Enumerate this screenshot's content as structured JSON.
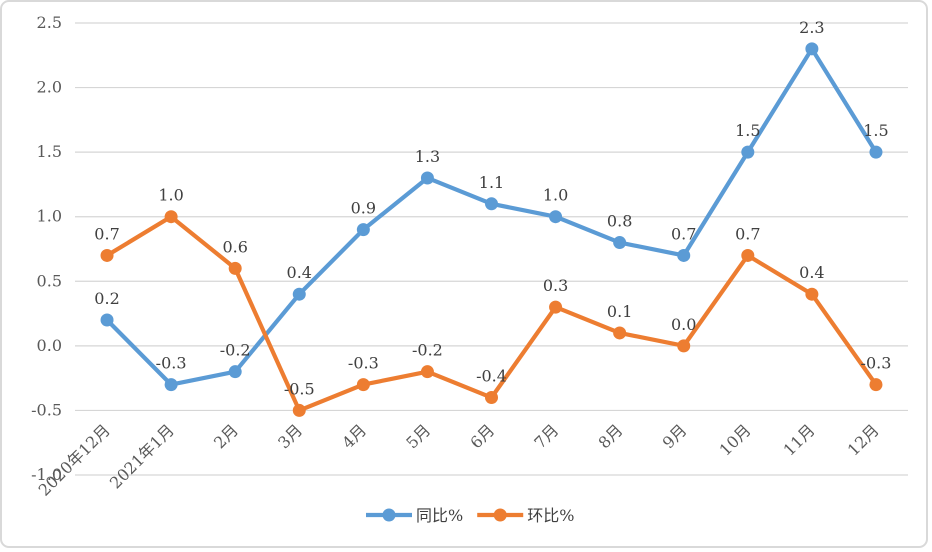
{
  "chart_data": {
    "type": "line",
    "title": "",
    "categories": [
      "2020年12月",
      "2021年1月",
      "2月",
      "3月",
      "4月",
      "5月",
      "6月",
      "7月",
      "8月",
      "9月",
      "10月",
      "11月",
      "12月"
    ],
    "series": [
      {
        "name": "同比%",
        "color": "#5B9BD5",
        "values": [
          0.2,
          -0.3,
          -0.2,
          0.4,
          0.9,
          1.3,
          1.1,
          1.0,
          0.8,
          0.7,
          1.5,
          2.3,
          1.5
        ],
        "labels": [
          "0.2",
          "-0.3",
          "-0.2",
          "0.4",
          "0.9",
          "1.3",
          "1.1",
          "1.0",
          "0.8",
          "0.7",
          "1.5",
          "2.3",
          "1.5"
        ]
      },
      {
        "name": "环比%",
        "color": "#ED7D31",
        "values": [
          0.7,
          1.0,
          0.6,
          -0.5,
          -0.3,
          -0.2,
          -0.4,
          0.3,
          0.1,
          0.0,
          0.7,
          0.4,
          -0.3
        ],
        "labels": [
          "0.7",
          "1.0",
          "0.6",
          "-0.5",
          "-0.3",
          "-0.2",
          "-0.4",
          "0.3",
          "0.1",
          "0.0",
          "0.7",
          "0.4",
          "-0.3"
        ]
      }
    ],
    "y_axis": {
      "min": -1.0,
      "max": 2.5,
      "step": 0.5,
      "tick_labels": [
        "2.5",
        "2.0",
        "1.5",
        "1.0",
        "0.5",
        "0.0",
        "-0.5",
        "-1.0"
      ]
    },
    "x_axis": {
      "label_rotation_deg": 45
    },
    "grid": true,
    "legend_position": "bottom-center",
    "colors": {
      "background": "#FFFFFF",
      "border": "#D9D9D9",
      "gridline": "#D6D6D6",
      "axis_label": "#595959",
      "data_label": "#404040",
      "legend_label": "#404040"
    }
  }
}
